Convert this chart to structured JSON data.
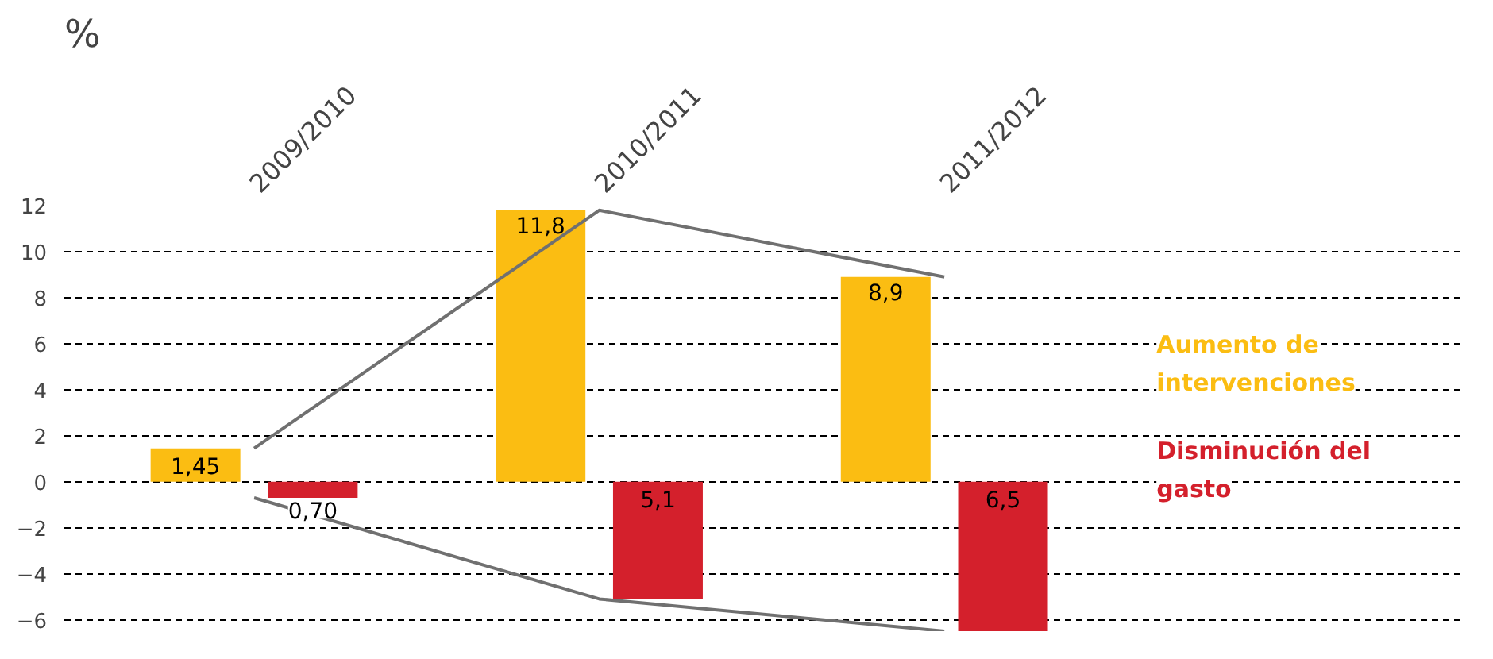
{
  "chart_data": {
    "type": "bar",
    "ylabel": "%",
    "categories": [
      "2009/2010",
      "2010/2011",
      "2011/2012"
    ],
    "series": [
      {
        "name": "Aumento de intervenciones",
        "color": "#fbbd12",
        "values": [
          1.45,
          11.8,
          8.9
        ],
        "value_labels": [
          "1,45",
          "11,8",
          "8,9"
        ]
      },
      {
        "name": "Disminución del gasto",
        "color": "#d4202c",
        "base": [
          -0.7,
          -5.1,
          -6.5
        ],
        "values": [
          0.7,
          5.1,
          6.5
        ],
        "value_labels": [
          "0,70",
          "5,1",
          "6,5"
        ]
      },
      {
        "type": "line",
        "color": "#707070",
        "values": [
          1.45,
          11.8,
          8.9
        ]
      },
      {
        "type": "line",
        "color": "#707070",
        "values": [
          -0.7,
          -5.1,
          -6.5
        ]
      }
    ],
    "ylim": [
      -6.5,
      12
    ],
    "yticks": [
      {
        "value": -6,
        "label": "−6"
      },
      {
        "value": -4,
        "label": "−4"
      },
      {
        "value": -2,
        "label": "−2"
      },
      0,
      2,
      4,
      6,
      8,
      10,
      12
    ],
    "grid": "y"
  }
}
